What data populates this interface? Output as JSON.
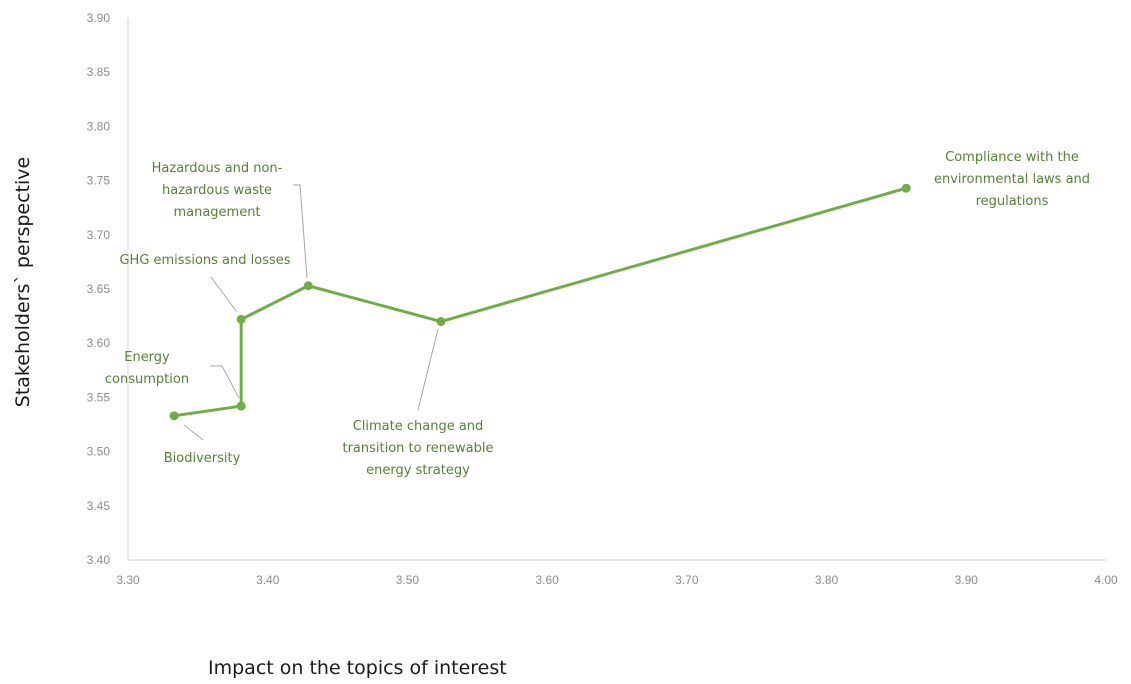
{
  "chart_data": {
    "type": "line",
    "title": "",
    "xlabel": "Impact on the topics of interest",
    "ylabel": "Stakeholders` perspective",
    "xlim": [
      3.3,
      4.0
    ],
    "ylim": [
      3.4,
      3.9
    ],
    "x_ticks": [
      "3.30",
      "3.40",
      "3.50",
      "3.60",
      "3.70",
      "3.80",
      "3.90",
      "4.00"
    ],
    "y_ticks": [
      "3.40",
      "3.45",
      "3.50",
      "3.55",
      "3.60",
      "3.65",
      "3.70",
      "3.75",
      "3.80",
      "3.85",
      "3.90"
    ],
    "grid": false,
    "legend": "none",
    "line_color": "#70ad47",
    "label_color": "#548235",
    "leader_color": "#a6a6a6",
    "points": [
      {
        "x": 3.333,
        "y": 3.533,
        "label": [
          "Biodiversity"
        ]
      },
      {
        "x": 3.381,
        "y": 3.542,
        "label": [
          "Energy",
          "consumption"
        ]
      },
      {
        "x": 3.381,
        "y": 3.622,
        "label": [
          "GHG emissions and losses"
        ]
      },
      {
        "x": 3.429,
        "y": 3.653,
        "label": [
          "Hazardous and non-",
          "hazardous waste",
          "management"
        ]
      },
      {
        "x": 3.524,
        "y": 3.62,
        "label": [
          "Climate change and",
          "transition to renewable",
          "energy strategy"
        ]
      },
      {
        "x": 3.857,
        "y": 3.743,
        "label": [
          "Compliance with the",
          "environmental laws and",
          "regulations"
        ]
      }
    ]
  }
}
